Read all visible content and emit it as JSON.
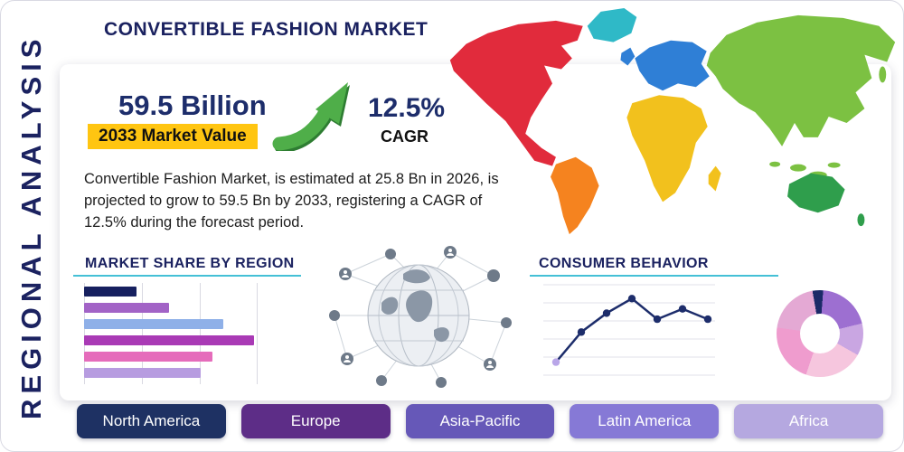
{
  "frame": {
    "side_label": "REGIONAL ANALYSIS",
    "title": "CONVERTIBLE FASHION MARKET"
  },
  "stats": {
    "value": "59.5 Billion",
    "value_caption": "2033 Market Value",
    "cagr": "12.5%",
    "cagr_caption": "CAGR",
    "description": "Convertible Fashion Market, is estimated at 25.8 Bn in 2026, is projected to grow to 59.5 Bn by 2033, registering a CAGR of 12.5% during the forecast period.",
    "highlight_color": "#ffc511",
    "arrow_color": "#4fae49"
  },
  "sections": {
    "market_share": "MARKET SHARE BY REGION",
    "consumer_behavior": "CONSUMER BEHAVIOR",
    "underline_color": "#45c0d6"
  },
  "region_buttons": [
    {
      "label": "North America",
      "color": "#1e3163"
    },
    {
      "label": "Europe",
      "color": "#5d2d87"
    },
    {
      "label": "Asia-Pacific",
      "color": "#6658b8"
    },
    {
      "label": "Latin America",
      "color": "#8679d6"
    },
    {
      "label": "Africa",
      "color": "#b5a8e0"
    }
  ],
  "chart_data": [
    {
      "type": "bar",
      "title": "MARKET SHARE BY REGION",
      "orientation": "horizontal",
      "values": [
        30,
        49,
        80,
        98,
        74,
        67
      ],
      "colors": [
        "#16205f",
        "#a263c6",
        "#8fb0e8",
        "#a93ab5",
        "#e56cbb",
        "#b79ce0"
      ],
      "xlim": [
        0,
        100
      ],
      "grid": true
    },
    {
      "type": "line",
      "title": "CONSUMER BEHAVIOR",
      "x": [
        1,
        2,
        3,
        4,
        5,
        6,
        7
      ],
      "values": [
        12,
        47,
        69,
        86,
        62,
        74,
        62
      ],
      "ylim": [
        0,
        100
      ],
      "color": "#1d2d6b",
      "first_marker_color": "#b9a6e8",
      "grid": true
    },
    {
      "type": "pie",
      "title": "Regional share donut",
      "donut": true,
      "start_deg": -10,
      "slices": [
        {
          "value": 4,
          "color": "#1b2a68"
        },
        {
          "value": 20,
          "color": "#9d6fd1"
        },
        {
          "value": 12,
          "color": "#c9a6e2"
        },
        {
          "value": 22,
          "color": "#f6c6de"
        },
        {
          "value": 22,
          "color": "#ef9cce"
        },
        {
          "value": 20,
          "color": "#e4a9d4"
        }
      ]
    }
  ],
  "map": {
    "colors": {
      "greenland": "#2fb9c7",
      "north_america": "#e12b3c",
      "south_america": "#f5831f",
      "europe": "#2f7fd6",
      "uk": "#2f7fd6",
      "africa": "#f2c11d",
      "madagascar": "#f2c11d",
      "asia": "#7cc142",
      "islands": "#7cc142",
      "japan": "#7cc142",
      "australia": "#2f9e4c",
      "new_zealand": "#2f9e4c"
    }
  }
}
